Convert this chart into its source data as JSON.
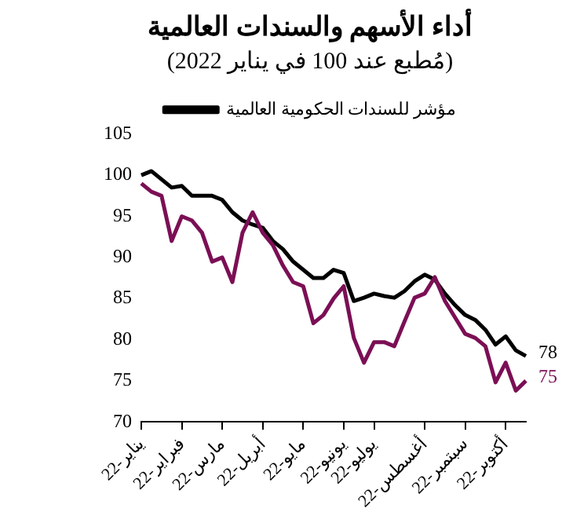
{
  "chart_data": {
    "type": "line",
    "title": "أداء الأسهم والسندات العالمية",
    "subtitle": "(مُطبع عند 100 في يناير 2022)",
    "categories": [
      "يناير-22",
      null,
      null,
      null,
      "فبراير-22",
      null,
      null,
      null,
      "مارس-22",
      null,
      null,
      null,
      "أبريل-22",
      null,
      null,
      null,
      "مايو-22",
      null,
      null,
      null,
      "يونيو-22",
      null,
      null,
      "يوليو-22",
      null,
      null,
      null,
      null,
      "أغسطس-22",
      null,
      null,
      null,
      "سبتمبر-22",
      null,
      null,
      null,
      "أكتوبر-22",
      null,
      null
    ],
    "series": [
      {
        "color": "#7b0f55",
        "values": [
          99,
          98,
          97.5,
          92,
          95,
          94.5,
          93,
          89.5,
          90,
          87,
          93,
          95.5,
          93,
          91.5,
          89,
          87,
          86.5,
          82,
          83,
          85,
          86.5,
          80.2,
          77.2,
          79.7,
          79.7,
          79.2,
          82.2,
          85.1,
          85.6,
          87.6,
          84.7,
          82.7,
          80.7,
          80.2,
          79.2,
          74.8,
          77.2,
          73.8,
          75
        ],
        "value_labels": [
          null,
          null,
          null,
          null,
          null,
          null,
          null,
          null,
          null,
          null,
          null,
          null,
          null,
          null,
          null,
          null,
          null,
          null,
          null,
          null,
          null,
          null,
          null,
          null,
          null,
          null,
          null,
          null,
          null,
          null,
          null,
          null,
          null,
          null,
          null,
          null,
          null,
          null,
          "75"
        ]
      },
      {
        "name": "مؤشر للسندات الحكومية العالمية",
        "color": "#000000",
        "values": [
          100,
          100.5,
          99.5,
          98.5,
          98.7,
          97.5,
          97.5,
          97.5,
          97,
          95.5,
          94.5,
          94,
          93.6,
          92,
          91,
          89.5,
          88.5,
          87.5,
          87.5,
          88.5,
          88.1,
          84.7,
          85.1,
          85.6,
          85.3,
          85.1,
          85.9,
          87.1,
          87.9,
          87.3,
          85.6,
          84.2,
          83,
          82.4,
          81.2,
          79.4,
          80.4,
          78.7,
          78
        ],
        "value_labels": [
          null,
          null,
          null,
          null,
          null,
          null,
          null,
          null,
          null,
          null,
          null,
          null,
          null,
          null,
          null,
          null,
          null,
          null,
          null,
          null,
          null,
          null,
          null,
          null,
          null,
          null,
          null,
          null,
          null,
          null,
          null,
          null,
          null,
          null,
          null,
          null,
          null,
          null,
          "78"
        ]
      }
    ],
    "ylim": [
      70,
      105
    ],
    "yticks": [
      70,
      75,
      80,
      85,
      90,
      95,
      100,
      105
    ],
    "grid": false,
    "legend": "top",
    "marker": "none",
    "line_style": "solid"
  }
}
